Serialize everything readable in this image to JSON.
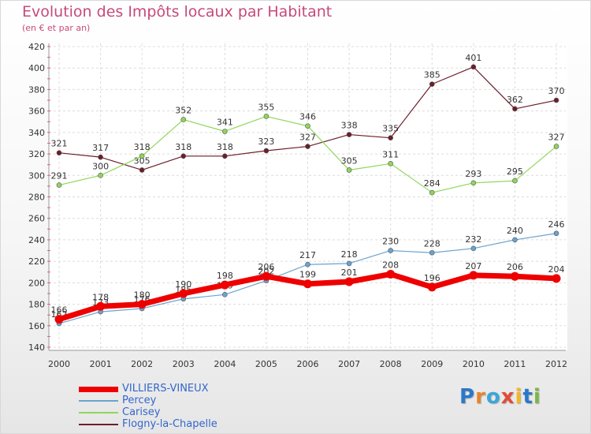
{
  "title": "Evolution des Impôts locaux par Habitant",
  "subtitle": "(en € et par an)",
  "logo": {
    "text": "Proxiti",
    "colors": [
      "#2b78c8",
      "#e8842a",
      "#3aa7d9",
      "#e24b3b",
      "#f2b627",
      "#2b78c8",
      "#7ab648"
    ]
  },
  "chart_data": {
    "type": "line",
    "x": [
      "2000",
      "2001",
      "2002",
      "2003",
      "2004",
      "2005",
      "2006",
      "2007",
      "2008",
      "2009",
      "2010",
      "2011",
      "2012"
    ],
    "ylim": [
      140,
      420
    ],
    "yticks": [
      140,
      160,
      180,
      200,
      220,
      240,
      260,
      280,
      300,
      320,
      340,
      360,
      380,
      400,
      420
    ],
    "grid": true,
    "legend_position": "bottom-left",
    "series": [
      {
        "name": "Flogny-la-Chapelle",
        "color": "#6b1e2a",
        "width": 1.2,
        "values": [
          321,
          317,
          305,
          318,
          318,
          323,
          327,
          338,
          335,
          385,
          401,
          362,
          370
        ],
        "labels": [
          "321",
          "317",
          "305",
          "318",
          "318",
          "323",
          "327",
          "338",
          "335",
          "385",
          "401",
          "362",
          "370"
        ]
      },
      {
        "name": "Carisey",
        "color": "#8fd65a",
        "width": 1.2,
        "values": [
          291,
          300,
          318,
          352,
          341,
          355,
          346,
          305,
          311,
          284,
          293,
          295,
          327
        ],
        "labels": [
          "291",
          "300",
          "318",
          "352",
          "341",
          "355",
          "346",
          "305",
          "311",
          "284",
          "293",
          "295",
          "327"
        ]
      },
      {
        "name": "Percey",
        "color": "#6aa3cf",
        "width": 1.2,
        "values": [
          162,
          173,
          176,
          185,
          189,
          202,
          217,
          218,
          230,
          228,
          232,
          240,
          246
        ],
        "labels": [
          "162",
          "173",
          "176",
          "185",
          "189",
          "202",
          "217",
          "218",
          "230",
          "228",
          "232",
          "240",
          "246"
        ]
      },
      {
        "name": "VILLIERS-VINEUX",
        "color": "#ee0000",
        "width": 7,
        "values": [
          166,
          178,
          180,
          190,
          198,
          206,
          199,
          201,
          208,
          196,
          207,
          206,
          204
        ],
        "labels": [
          "166",
          "178",
          "180",
          "190",
          "198",
          "206",
          "199",
          "201",
          "208",
          "196",
          "207",
          "206",
          "204"
        ]
      }
    ],
    "legend": [
      {
        "name": "VILLIERS-VINEUX",
        "color": "#ee0000",
        "text_color": "#3366cc",
        "width": 7
      },
      {
        "name": "Percey",
        "color": "#6aa3cf",
        "text_color": "#3366cc",
        "width": 2
      },
      {
        "name": "Carisey",
        "color": "#8fd65a",
        "text_color": "#3366cc",
        "width": 2
      },
      {
        "name": "Flogny-la-Chapelle",
        "color": "#6b1e2a",
        "text_color": "#3366cc",
        "width": 2
      }
    ]
  }
}
